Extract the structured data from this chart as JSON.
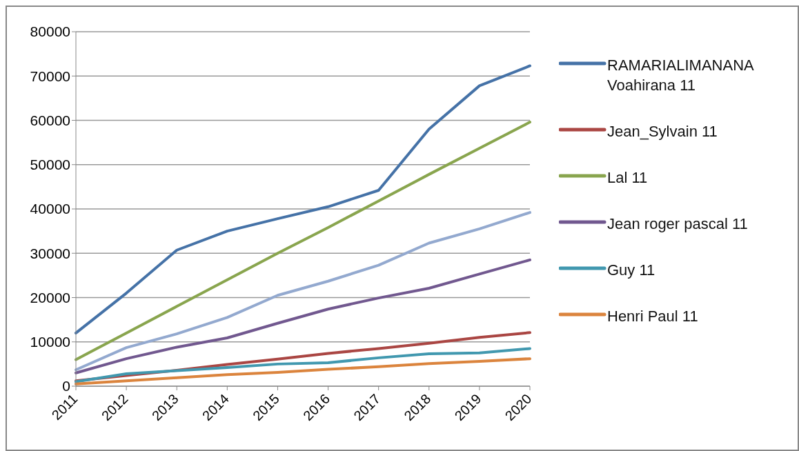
{
  "chart_data": {
    "type": "line",
    "categories": [
      "2011",
      "2012",
      "2013",
      "2014",
      "2015",
      "2016",
      "2017",
      "2018",
      "2019",
      "2020"
    ],
    "ylim": [
      0,
      80000
    ],
    "yticks": [
      0,
      10000,
      20000,
      30000,
      40000,
      50000,
      60000,
      70000,
      80000
    ],
    "grid": "y",
    "legend": "right",
    "marker": "none",
    "line_style": "solid",
    "series": [
      {
        "name": "RAMARIALIMANANA Voahirana 11",
        "color": "#4572a7",
        "values": [
          12000,
          21000,
          30700,
          35000,
          37800,
          40500,
          44200,
          58000,
          67800,
          72300
        ]
      },
      {
        "name": "Jean_Sylvain 11",
        "color": "#aa4643",
        "values": [
          1200,
          2400,
          3600,
          4900,
          6100,
          7400,
          8500,
          9700,
          11000,
          12100
        ]
      },
      {
        "name": "Lal 11",
        "color": "#89a54e",
        "values": [
          6000,
          12000,
          18000,
          24000,
          30000,
          35800,
          41800,
          47800,
          53700,
          59600
        ]
      },
      {
        "name": "Jean roger pascal 11",
        "color": "#71588f",
        "values": [
          3000,
          6200,
          8800,
          10900,
          14200,
          17400,
          19900,
          22100,
          25300,
          28500
        ]
      },
      {
        "name": "Guy 11",
        "color": "#4198af",
        "values": [
          1000,
          2800,
          3500,
          4200,
          5000,
          5300,
          6400,
          7300,
          7500,
          8500
        ]
      },
      {
        "name": "Henri Paul 11",
        "color": "#db843d",
        "values": [
          500,
          1200,
          1900,
          2600,
          3100,
          3800,
          4400,
          5100,
          5600,
          6200
        ]
      },
      {
        "color": "#93a9cf",
        "values": [
          3700,
          8700,
          11800,
          15500,
          20500,
          23700,
          27300,
          32300,
          35500,
          39200
        ]
      }
    ]
  }
}
